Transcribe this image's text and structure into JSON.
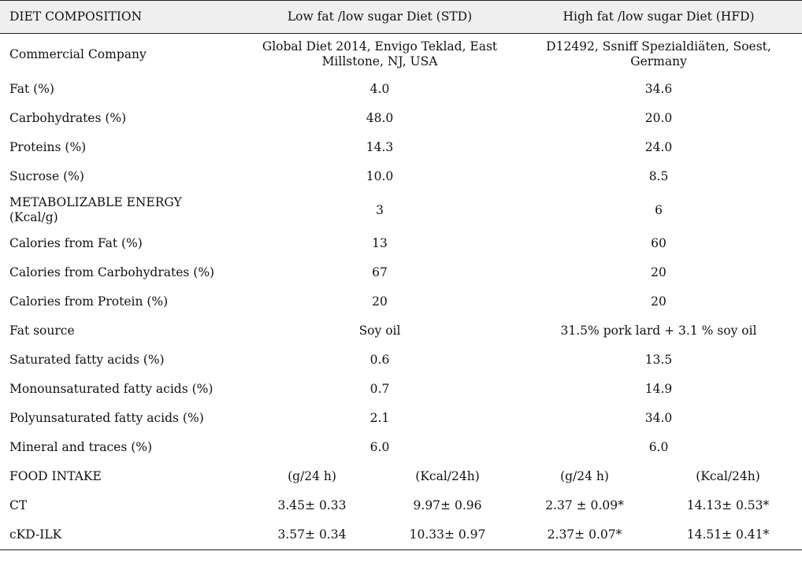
{
  "header": {
    "col1": "DIET COMPOSITION",
    "col2": "Low fat /low sugar Diet (STD)",
    "col3": "High fat /low sugar Diet (HFD)"
  },
  "rows": [
    {
      "label": "Commercial Company",
      "std": "Global Diet 2014, Envigo Teklad, East Millstone, NJ, USA",
      "hfd": "D12492, Ssniff Spezialdiäten, Soest, Germany"
    },
    {
      "label": "Fat (%)",
      "std": "4.0",
      "hfd": "34.6"
    },
    {
      "label": "Carbohydrates (%)",
      "std": "48.0",
      "hfd": "20.0"
    },
    {
      "label": "Proteins (%)",
      "std": "14.3",
      "hfd": "24.0"
    },
    {
      "label": "Sucrose (%)",
      "std": "10.0",
      "hfd": "8.5"
    },
    {
      "label": "METABOLIZABLE ENERGY (Kcal/g)",
      "std": "3",
      "hfd": "6"
    },
    {
      "label": "Calories from Fat (%)",
      "std": "13",
      "hfd": "60"
    },
    {
      "label": "Calories from Carbohydrates (%)",
      "std": "67",
      "hfd": "20"
    },
    {
      "label": "Calories from Protein (%)",
      "std": "20",
      "hfd": "20"
    },
    {
      "label": "Fat source",
      "std": "Soy oil",
      "hfd": "31.5% pork lard + 3.1 % soy oil"
    },
    {
      "label": "Saturated fatty acids (%)",
      "std": "0.6",
      "hfd": "13.5"
    },
    {
      "label": "Monounsaturated fatty acids (%)",
      "std": "0.7",
      "hfd": "14.9"
    },
    {
      "label": "Polyunsaturated fatty acids (%)",
      "std": "2.1",
      "hfd": "34.0"
    },
    {
      "label": "Mineral and traces (%)",
      "std": "6.0",
      "hfd": "6.0"
    }
  ],
  "food_intake": {
    "label": "FOOD INTAKE",
    "std_g": "(g/24 h)",
    "std_kcal": "(Kcal/24h)",
    "hfd_g": "(g/24 h)",
    "hfd_kcal": "(Kcal/24h)"
  },
  "groups": [
    {
      "label": "CT",
      "std_g": "3.45± 0.33",
      "std_kcal": "9.97± 0.96",
      "hfd_g": "2.37 ± 0.09*",
      "hfd_kcal": "14.13± 0.53*"
    },
    {
      "label": "cKD-ILK",
      "std_g": "3.57± 0.34",
      "std_kcal": "10.33± 0.97",
      "hfd_g": "2.37± 0.07*",
      "hfd_kcal": "14.51± 0.41*"
    }
  ]
}
